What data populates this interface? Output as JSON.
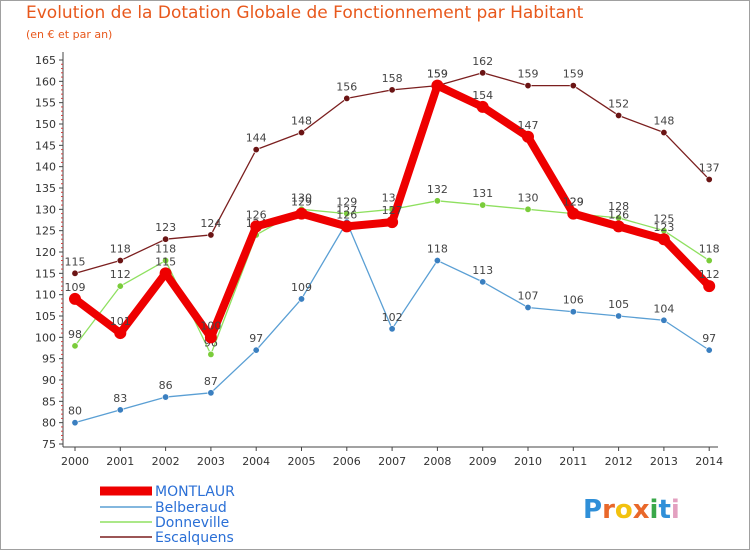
{
  "header": {
    "title": "Evolution de la Dotation Globale de Fonctionnement par Habitant",
    "subtitle": "(en € et par an)"
  },
  "logo": {
    "text": "Proxiti"
  },
  "chart_data": {
    "type": "line",
    "title": "Evolution de la Dotation Globale de Fonctionnement par Habitant",
    "subtitle": "(en € et par an)",
    "xlabel": "",
    "ylabel": "",
    "ylim": [
      75,
      165
    ],
    "ytick_step": 5,
    "grid": false,
    "legend_position": "bottom-left",
    "x": [
      "2000",
      "2001",
      "2002",
      "2003",
      "2004",
      "2005",
      "2006",
      "2007",
      "2008",
      "2009",
      "2010",
      "2011",
      "2012",
      "2013",
      "2014"
    ],
    "series": [
      {
        "name": "Escalquens",
        "color": "#7b1f1f",
        "marker_color": "#6b1414",
        "values": [
          115,
          118,
          123,
          124,
          144,
          148,
          156,
          158,
          159,
          162,
          159,
          159,
          152,
          148,
          137
        ]
      },
      {
        "name": "Belberaud",
        "color": "#5a9fd4",
        "marker_color": "#3a7fc0",
        "values": [
          80,
          83,
          86,
          87,
          97,
          109,
          127,
          102,
          118,
          113,
          107,
          106,
          105,
          104,
          97
        ]
      },
      {
        "name": "Donneville",
        "color": "#8fe060",
        "marker_color": "#7acc3a",
        "values": [
          98,
          112,
          118,
          96,
          124,
          130,
          129,
          130,
          132,
          131,
          130,
          129,
          128,
          125,
          118
        ]
      },
      {
        "name": "MONTLAUR",
        "color": "#ee0000",
        "marker_color": "#ee0000",
        "values": [
          109,
          101,
          115,
          100,
          126,
          129,
          126,
          127,
          159,
          154,
          147,
          129,
          126,
          123,
          112
        ]
      }
    ],
    "legend": [
      "MONTLAUR",
      "Belberaud",
      "Donneville",
      "Escalquens"
    ]
  }
}
